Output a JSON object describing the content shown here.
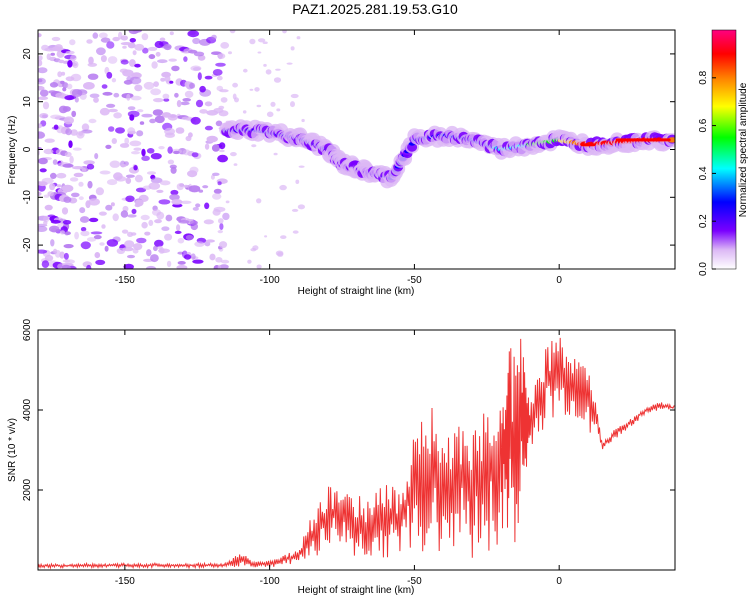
{
  "title": "PAZ1.2025.281.19.53.G10",
  "chart_data": [
    {
      "type": "heatmap",
      "xlabel": "Height of straight line (km)",
      "ylabel": "Frequency (Hz)",
      "xlim": [
        -180,
        40
      ],
      "ylim": [
        -25,
        25
      ],
      "x_ticks": [
        -150,
        -100,
        -50,
        0
      ],
      "y_ticks": [
        -20,
        -10,
        0,
        10,
        20
      ],
      "colorbar": {
        "label": "Normalized spectral amplitude",
        "range": [
          0,
          1
        ],
        "ticks": [
          0.0,
          0.2,
          0.4,
          0.6,
          0.8
        ],
        "colors": [
          "#ffffff",
          "#dcb8f5",
          "#7a00ff",
          "#0000ff",
          "#00ffff",
          "#00ff00",
          "#ffff00",
          "#ff8000",
          "#ff0000",
          "#ff0080"
        ]
      },
      "ridge": [
        {
          "x": -115,
          "f": 4,
          "amp": 0.3
        },
        {
          "x": -105,
          "f": 4,
          "amp": 0.3
        },
        {
          "x": -95,
          "f": 3,
          "amp": 0.3
        },
        {
          "x": -88,
          "f": 2,
          "amp": 0.3
        },
        {
          "x": -80,
          "f": 0,
          "amp": 0.35
        },
        {
          "x": -75,
          "f": -3,
          "amp": 0.3
        },
        {
          "x": -70,
          "f": -4,
          "amp": 0.3
        },
        {
          "x": -65,
          "f": -5,
          "amp": 0.3
        },
        {
          "x": -58,
          "f": -6,
          "amp": 0.3
        },
        {
          "x": -50,
          "f": 2,
          "amp": 0.3
        },
        {
          "x": -40,
          "f": 3,
          "amp": 0.35
        },
        {
          "x": -30,
          "f": 2,
          "amp": 0.35
        },
        {
          "x": -20,
          "f": 0,
          "amp": 0.4
        },
        {
          "x": -10,
          "f": 1,
          "amp": 0.5
        },
        {
          "x": 0,
          "f": 2,
          "amp": 0.6
        },
        {
          "x": 10,
          "f": 1,
          "amp": 0.9
        },
        {
          "x": 20,
          "f": 1.5,
          "amp": 0.85
        },
        {
          "x": 30,
          "f": 2,
          "amp": 0.9
        },
        {
          "x": 40,
          "f": 2,
          "amp": 0.8
        }
      ]
    },
    {
      "type": "line",
      "xlabel": "Height of straight line (km)",
      "ylabel": "SNR (10 * v/v)",
      "xlim": [
        -180,
        40
      ],
      "ylim": [
        0,
        6000
      ],
      "x_ticks": [
        -150,
        -100,
        -50,
        0
      ],
      "y_ticks": [
        2000,
        4000,
        6000
      ],
      "color": "#ee3333",
      "series": [
        {
          "name": "SNR",
          "x": [
            -180,
            -175,
            -170,
            -165,
            -160,
            -155,
            -150,
            -145,
            -140,
            -135,
            -130,
            -125,
            -120,
            -115,
            -110,
            -105,
            -100,
            -95,
            -90,
            -85,
            -80,
            -75,
            -70,
            -65,
            -60,
            -55,
            -50,
            -45,
            -40,
            -35,
            -30,
            -25,
            -20,
            -17,
            -13,
            -10,
            -5,
            0,
            5,
            10,
            15,
            20,
            25,
            30,
            35,
            40
          ],
          "lower": [
            50,
            50,
            60,
            50,
            60,
            70,
            60,
            60,
            60,
            70,
            50,
            60,
            60,
            60,
            80,
            60,
            60,
            100,
            200,
            300,
            500,
            600,
            200,
            250,
            300,
            400,
            300,
            350,
            500,
            600,
            300,
            400,
            500,
            600,
            800,
            3000,
            3500,
            3800,
            3700,
            3500,
            3000,
            3300,
            3600,
            3900,
            4000,
            4000
          ],
          "upper": [
            150,
            160,
            150,
            170,
            160,
            150,
            170,
            160,
            180,
            150,
            160,
            170,
            170,
            180,
            450,
            200,
            250,
            400,
            500,
            1500,
            2200,
            2000,
            1900,
            1800,
            2200,
            2000,
            3500,
            4300,
            3300,
            3800,
            3400,
            4200,
            4800,
            5600,
            6000,
            4200,
            5600,
            5900,
            5300,
            5500,
            3200,
            3600,
            3800,
            4100,
            4200,
            4100
          ]
        }
      ]
    }
  ]
}
